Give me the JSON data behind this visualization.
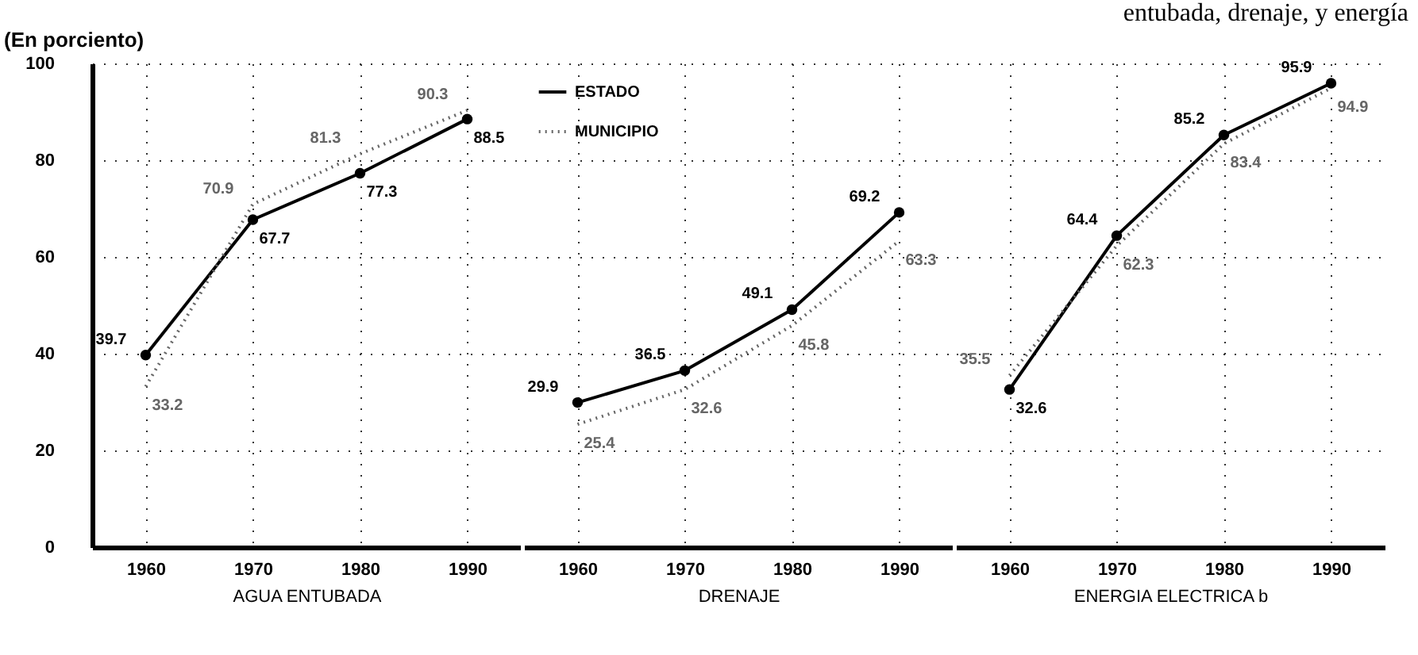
{
  "chart_data": [
    {
      "type": "line",
      "ylabel": "(En porciento)",
      "xlabel": "AGUA ENTUBADA",
      "categories": [
        "1960",
        "1970",
        "1980",
        "1990"
      ],
      "ylim": [
        0,
        100
      ],
      "yticks": [
        0,
        20,
        40,
        60,
        80,
        100
      ],
      "grid": true,
      "data_labels": true,
      "series": [
        {
          "color": "#000000",
          "marker": "circle",
          "line_style": "solid",
          "values": [
            39.7,
            67.7,
            77.3,
            88.5
          ]
        },
        {
          "color": "#666666",
          "line_style": "dotted",
          "values": [
            33.2,
            70.9,
            81.3,
            90.3
          ]
        }
      ]
    },
    {
      "type": "line",
      "xlabel": "DRENAJE",
      "categories": [
        "1960",
        "1970",
        "1980",
        "1990"
      ],
      "ylim": [
        0,
        100
      ],
      "yticks": [
        0,
        20,
        40,
        60,
        80,
        100
      ],
      "grid": true,
      "data_labels": true,
      "tick_labels": "x",
      "legend": "top left",
      "series": [
        {
          "name": "ESTADO",
          "color": "#000000",
          "marker": "circle",
          "line_style": "solid",
          "values": [
            29.9,
            36.5,
            49.1,
            69.2
          ]
        },
        {
          "name": "MUNICIPIO",
          "color": "#666666",
          "line_style": "dotted",
          "values": [
            25.4,
            32.6,
            45.8,
            63.3
          ]
        }
      ]
    },
    {
      "type": "line",
      "xlabel": "ENERGIA ELECTRICA b",
      "categories": [
        "1960",
        "1970",
        "1980",
        "1990"
      ],
      "ylim": [
        0,
        100
      ],
      "yticks": [
        0,
        20,
        40,
        60,
        80,
        100
      ],
      "grid": true,
      "data_labels": true,
      "tick_labels": "x",
      "annotations": [
        "entubada, drenaje, y energía"
      ],
      "series": [
        {
          "color": "#000000",
          "marker": "circle",
          "line_style": "solid",
          "values": [
            32.6,
            64.4,
            85.2,
            95.9
          ]
        },
        {
          "color": "#666666",
          "line_style": "dotted",
          "values": [
            35.5,
            62.3,
            83.4,
            94.9
          ]
        }
      ]
    }
  ]
}
